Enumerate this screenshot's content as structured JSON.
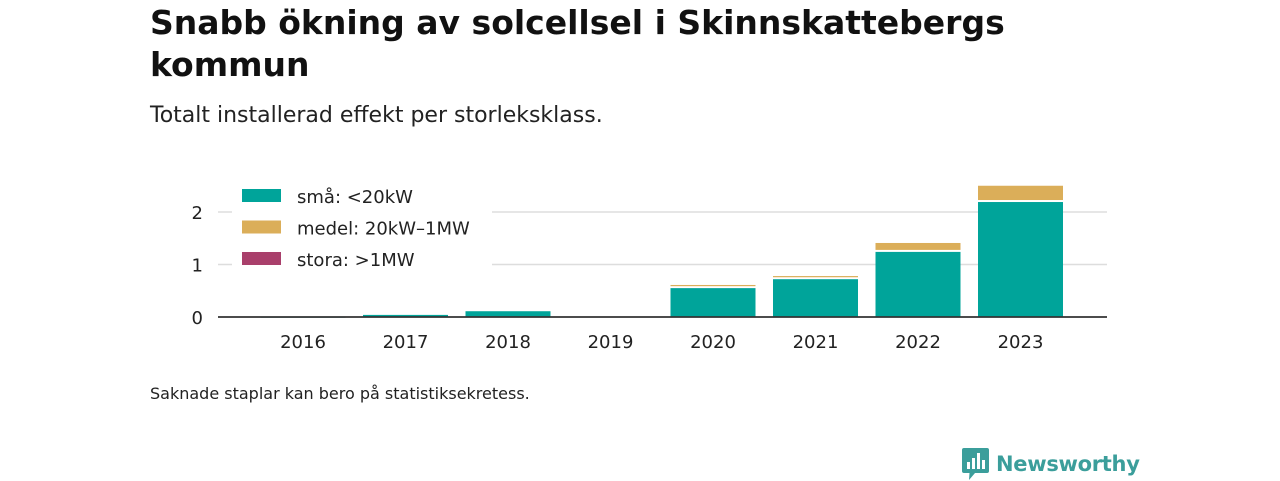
{
  "header": {
    "title": "Snabb ökning av solcellsel i Skinnskattebergs kommun",
    "subtitle": "Totalt installerad effekt per storleksklass."
  },
  "footer": {
    "note": "Saknade staplar kan bero på statistiksekretess.",
    "brand": "Newsworthy"
  },
  "colors": {
    "small": "#00a49a",
    "medium": "#dbae59",
    "large": "#a93f6b",
    "grid": "#dddddd",
    "axis": "#333333",
    "brand": "#3b9e9b"
  },
  "chart_data": {
    "type": "bar",
    "stacked": true,
    "categories": [
      "2016",
      "2017",
      "2018",
      "2019",
      "2020",
      "2021",
      "2022",
      "2023"
    ],
    "series": [
      {
        "name": "små: <20kW",
        "values": [
          0.01,
          0.04,
          0.11,
          null,
          0.55,
          0.72,
          1.24,
          2.19
        ]
      },
      {
        "name": "medel: 20kW–1MW",
        "values": [
          0,
          0,
          0,
          null,
          0.06,
          0.06,
          0.17,
          0.31
        ]
      },
      {
        "name": "stora: >1MW",
        "values": [
          0,
          0,
          0,
          null,
          0,
          0,
          0,
          0
        ]
      }
    ],
    "yticks": [
      "0",
      "1",
      "2"
    ],
    "ylim": [
      0,
      2.5
    ],
    "grid": true,
    "legend_position": "top-left"
  }
}
